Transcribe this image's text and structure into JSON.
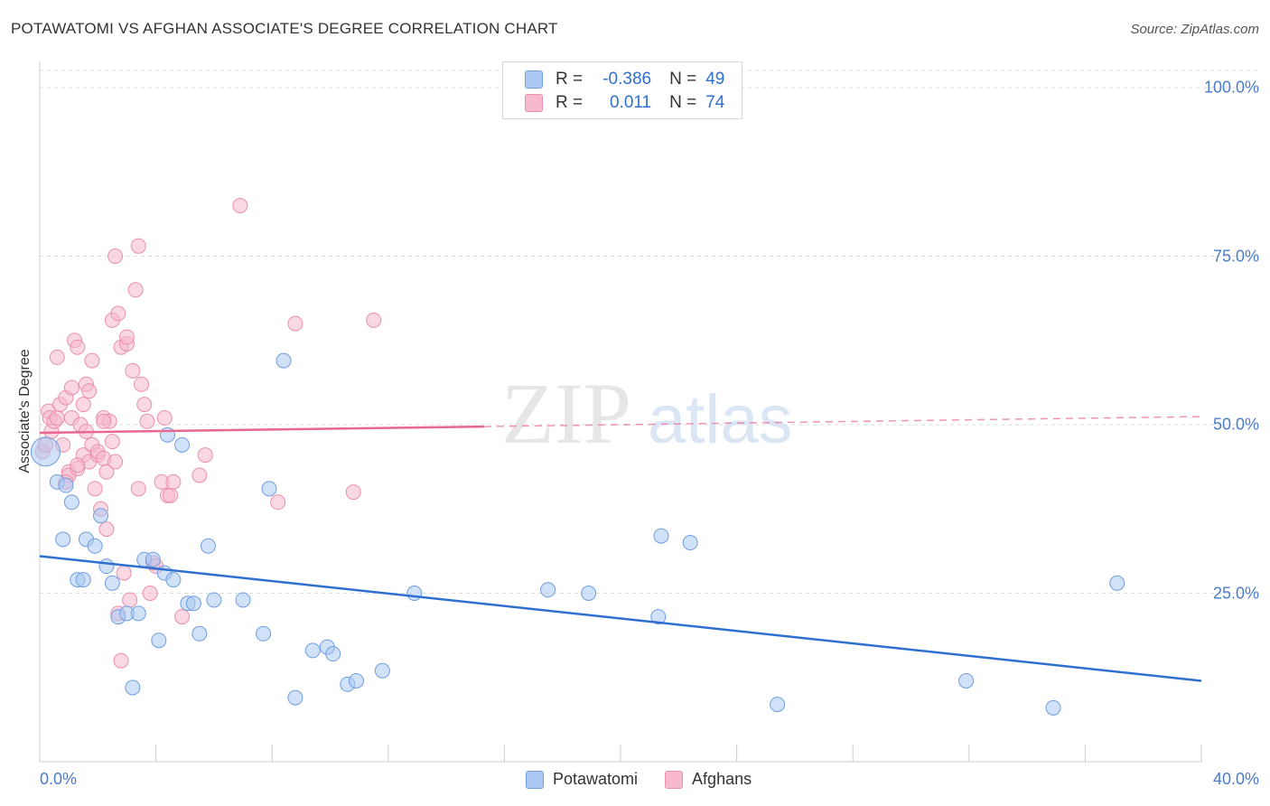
{
  "header": {
    "title": "POTAWATOMI VS AFGHAN ASSOCIATE'S DEGREE CORRELATION CHART",
    "source": "Source: ZipAtlas.com"
  },
  "legend": {
    "rows": [
      {
        "r_label": "R =",
        "r_value": "-0.386",
        "n_label": "N =",
        "n_value": "49"
      },
      {
        "r_label": "R =",
        "r_value": "0.011",
        "n_label": "N =",
        "n_value": "74"
      }
    ]
  },
  "watermark": {
    "zip": "ZIP",
    "atlas": "atlas"
  },
  "colors": {
    "blue_fill": "#aac8f2",
    "blue_stroke": "#6f9fdf",
    "blue_line": "#2f6fd0",
    "pink_fill": "#f6b8cc",
    "pink_stroke": "#ea8fae",
    "pink_line": "#e8688f",
    "grid": "#dddddd",
    "axis_text": "#4a7cc9"
  },
  "chart_data": {
    "type": "scatter",
    "title": "POTAWATOMI VS AFGHAN ASSOCIATE'S DEGREE CORRELATION CHART",
    "xlabel": "",
    "ylabel": "Associate's Degree",
    "xlim": [
      0,
      40
    ],
    "ylim": [
      0,
      100
    ],
    "x_ticks": [
      "0.0%",
      "40.0%"
    ],
    "y_ticks": [
      "100.0%",
      "75.0%",
      "50.0%",
      "25.0%"
    ],
    "y_tick_values": [
      100,
      75,
      50,
      25
    ],
    "legend_position": "top-center",
    "series": [
      {
        "name": "Potawatomi",
        "color": "blue",
        "r": -0.386,
        "n": 49,
        "trend": {
          "x0": 0,
          "y0": 30.5,
          "x1": 40,
          "y1": 12.0,
          "x_end_solid": 40
        },
        "points": [
          [
            0.2,
            46,
            16
          ],
          [
            0.6,
            41.5,
            8
          ],
          [
            0.9,
            41,
            8
          ],
          [
            1.1,
            38.5,
            8
          ],
          [
            0.8,
            33,
            8
          ],
          [
            1.3,
            27,
            8
          ],
          [
            1.5,
            27,
            8
          ],
          [
            1.6,
            33,
            8
          ],
          [
            1.9,
            32,
            8
          ],
          [
            2.1,
            36.5,
            8
          ],
          [
            2.3,
            29,
            8
          ],
          [
            2.5,
            26.5,
            8
          ],
          [
            2.7,
            21.5,
            8
          ],
          [
            3.0,
            22,
            8
          ],
          [
            3.2,
            11,
            8
          ],
          [
            3.4,
            22,
            8
          ],
          [
            3.6,
            30,
            8
          ],
          [
            3.9,
            30,
            8
          ],
          [
            4.1,
            18,
            8
          ],
          [
            4.3,
            28,
            8
          ],
          [
            4.6,
            27,
            8
          ],
          [
            4.4,
            48.5,
            8
          ],
          [
            4.9,
            47,
            8
          ],
          [
            5.1,
            23.5,
            8
          ],
          [
            5.3,
            23.5,
            8
          ],
          [
            5.5,
            19,
            8
          ],
          [
            5.8,
            32,
            8
          ],
          [
            6.0,
            24,
            8
          ],
          [
            7.0,
            24,
            8
          ],
          [
            7.7,
            19,
            8
          ],
          [
            7.9,
            40.5,
            8
          ],
          [
            8.4,
            59.5,
            8
          ],
          [
            8.8,
            9.5,
            8
          ],
          [
            9.4,
            16.5,
            8
          ],
          [
            9.9,
            17,
            8
          ],
          [
            10.1,
            16,
            8
          ],
          [
            10.6,
            11.5,
            8
          ],
          [
            10.9,
            12,
            8
          ],
          [
            11.8,
            13.5,
            8
          ],
          [
            12.9,
            25,
            8
          ],
          [
            17.5,
            25.5,
            8
          ],
          [
            18.9,
            25,
            8
          ],
          [
            21.3,
            21.5,
            8
          ],
          [
            21.4,
            33.5,
            8
          ],
          [
            22.4,
            32.5,
            8
          ],
          [
            25.4,
            8.5,
            8
          ],
          [
            31.9,
            12,
            8
          ],
          [
            34.9,
            8,
            8
          ],
          [
            37.1,
            26.5,
            8
          ]
        ]
      },
      {
        "name": "Afghans",
        "color": "pink",
        "r": 0.011,
        "n": 74,
        "trend": {
          "x0": 0,
          "y0": 48.8,
          "x1": 40,
          "y1": 51.2,
          "x_end_solid": 15.3
        },
        "points": [
          [
            0.1,
            46,
            8
          ],
          [
            0.2,
            47,
            8
          ],
          [
            0.3,
            52,
            8
          ],
          [
            0.35,
            51,
            8
          ],
          [
            0.4,
            49,
            8
          ],
          [
            0.5,
            50.5,
            8
          ],
          [
            0.6,
            51,
            8
          ],
          [
            0.7,
            53,
            8
          ],
          [
            0.6,
            60,
            8
          ],
          [
            0.8,
            47,
            8
          ],
          [
            0.9,
            54,
            8
          ],
          [
            1.0,
            43,
            8
          ],
          [
            1.0,
            42.5,
            8
          ],
          [
            1.1,
            51,
            8
          ],
          [
            1.1,
            55.5,
            8
          ],
          [
            1.2,
            62.5,
            8
          ],
          [
            1.3,
            61.5,
            8
          ],
          [
            1.3,
            43.5,
            8
          ],
          [
            1.4,
            50,
            8
          ],
          [
            1.5,
            53,
            8
          ],
          [
            1.5,
            45.5,
            8
          ],
          [
            1.6,
            49,
            8
          ],
          [
            1.6,
            56,
            8
          ],
          [
            1.7,
            55,
            8
          ],
          [
            1.7,
            44.5,
            8
          ],
          [
            1.8,
            59.5,
            8
          ],
          [
            1.8,
            47,
            8
          ],
          [
            1.9,
            40.5,
            8
          ],
          [
            2.0,
            45.5,
            8
          ],
          [
            2.0,
            46,
            8
          ],
          [
            2.1,
            37.5,
            8
          ],
          [
            2.2,
            45,
            8
          ],
          [
            2.2,
            51,
            8
          ],
          [
            2.3,
            34.5,
            8
          ],
          [
            2.3,
            43,
            8
          ],
          [
            2.4,
            50.5,
            8
          ],
          [
            2.5,
            65.5,
            8
          ],
          [
            2.5,
            47.5,
            8
          ],
          [
            2.6,
            75,
            8
          ],
          [
            2.6,
            44.5,
            8
          ],
          [
            2.7,
            22,
            8
          ],
          [
            2.7,
            66.5,
            8
          ],
          [
            2.8,
            61.5,
            8
          ],
          [
            2.8,
            15,
            8
          ],
          [
            2.9,
            28,
            8
          ],
          [
            3.0,
            62,
            8
          ],
          [
            3.0,
            63,
            8
          ],
          [
            3.1,
            24,
            8
          ],
          [
            3.2,
            58,
            8
          ],
          [
            3.3,
            70,
            8
          ],
          [
            3.4,
            40.5,
            8
          ],
          [
            3.4,
            76.5,
            8
          ],
          [
            3.5,
            56,
            8
          ],
          [
            3.6,
            53,
            8
          ],
          [
            3.7,
            50.5,
            8
          ],
          [
            3.8,
            25,
            8
          ],
          [
            3.9,
            29.5,
            8
          ],
          [
            4.0,
            29,
            8
          ],
          [
            4.2,
            41.5,
            8
          ],
          [
            4.3,
            51,
            8
          ],
          [
            4.4,
            39.5,
            8
          ],
          [
            4.5,
            39.5,
            8
          ],
          [
            4.6,
            41.5,
            8
          ],
          [
            4.9,
            21.5,
            8
          ],
          [
            5.5,
            42.5,
            8
          ],
          [
            5.7,
            45.5,
            8
          ],
          [
            6.9,
            82.5,
            8
          ],
          [
            8.2,
            38.5,
            8
          ],
          [
            8.8,
            65,
            8
          ],
          [
            10.8,
            40,
            8
          ],
          [
            11.5,
            65.5,
            8
          ],
          [
            2.2,
            50.5,
            8
          ],
          [
            0.9,
            41.5,
            8
          ],
          [
            1.3,
            44,
            8
          ]
        ]
      }
    ]
  }
}
